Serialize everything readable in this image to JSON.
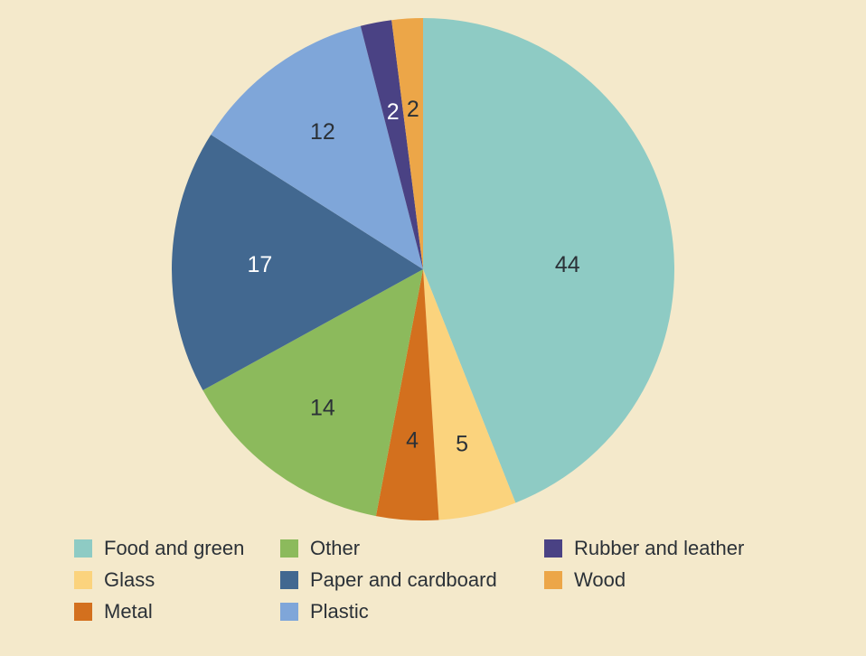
{
  "background_color": "#F4E9CB",
  "text_color": "#2B3137",
  "chart_data": {
    "type": "pie",
    "title": "",
    "unit": "percent",
    "direction": "clockwise",
    "start_angle_deg": 0,
    "legend_position": "bottom",
    "categories": [
      "Food and green",
      "Glass",
      "Metal",
      "Other",
      "Paper and cardboard",
      "Plastic",
      "Rubber and leather",
      "Wood"
    ],
    "values": [
      44,
      5,
      4,
      14,
      17,
      12,
      2,
      2
    ],
    "colors": [
      "#8ECBC4",
      "#FBD37D",
      "#D3701E",
      "#8CBA5C",
      "#426890",
      "#7FA6D9",
      "#4A4284",
      "#ECA648"
    ],
    "label_colors": [
      "#2B3137",
      "#2B3137",
      "#2B3137",
      "#2B3137",
      "#FFFFFF",
      "#2B3137",
      "#FFFFFF",
      "#2B3137"
    ],
    "legend_columns": [
      [
        0,
        1,
        2
      ],
      [
        3,
        4,
        5
      ],
      [
        6,
        7
      ]
    ]
  }
}
